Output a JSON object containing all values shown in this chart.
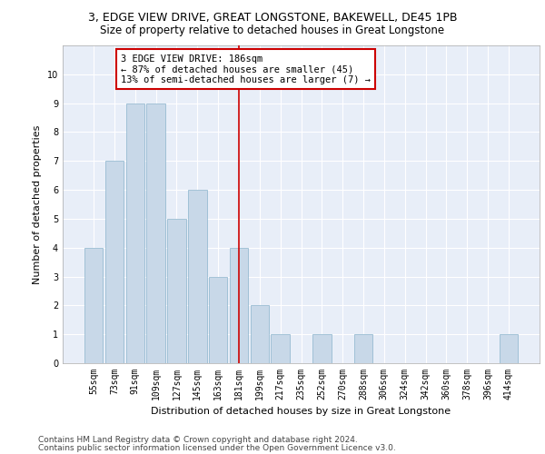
{
  "title1": "3, EDGE VIEW DRIVE, GREAT LONGSTONE, BAKEWELL, DE45 1PB",
  "title2": "Size of property relative to detached houses in Great Longstone",
  "xlabel": "Distribution of detached houses by size in Great Longstone",
  "ylabel": "Number of detached properties",
  "footer1": "Contains HM Land Registry data © Crown copyright and database right 2024.",
  "footer2": "Contains public sector information licensed under the Open Government Licence v3.0.",
  "categories": [
    "55sqm",
    "73sqm",
    "91sqm",
    "109sqm",
    "127sqm",
    "145sqm",
    "163sqm",
    "181sqm",
    "199sqm",
    "217sqm",
    "235sqm",
    "252sqm",
    "270sqm",
    "288sqm",
    "306sqm",
    "324sqm",
    "342sqm",
    "360sqm",
    "378sqm",
    "396sqm",
    "414sqm"
  ],
  "values": [
    4,
    7,
    9,
    9,
    5,
    6,
    3,
    4,
    2,
    1,
    0,
    1,
    0,
    1,
    0,
    0,
    0,
    0,
    0,
    0,
    1
  ],
  "bar_color": "#c8d8e8",
  "bar_edge_color": "#8ab4cc",
  "highlight_index": 7,
  "highlight_line_color": "#cc0000",
  "annotation_text": "3 EDGE VIEW DRIVE: 186sqm\n← 87% of detached houses are smaller (45)\n13% of semi-detached houses are larger (7) →",
  "annotation_box_color": "#ffffff",
  "annotation_box_edge_color": "#cc0000",
  "ylim": [
    0,
    11
  ],
  "yticks": [
    0,
    1,
    2,
    3,
    4,
    5,
    6,
    7,
    8,
    9,
    10,
    11
  ],
  "background_color": "#e8eef8",
  "grid_color": "#ffffff",
  "title1_fontsize": 9,
  "title2_fontsize": 8.5,
  "axis_label_fontsize": 8,
  "tick_fontsize": 7,
  "annotation_fontsize": 7.5,
  "footer_fontsize": 6.5
}
